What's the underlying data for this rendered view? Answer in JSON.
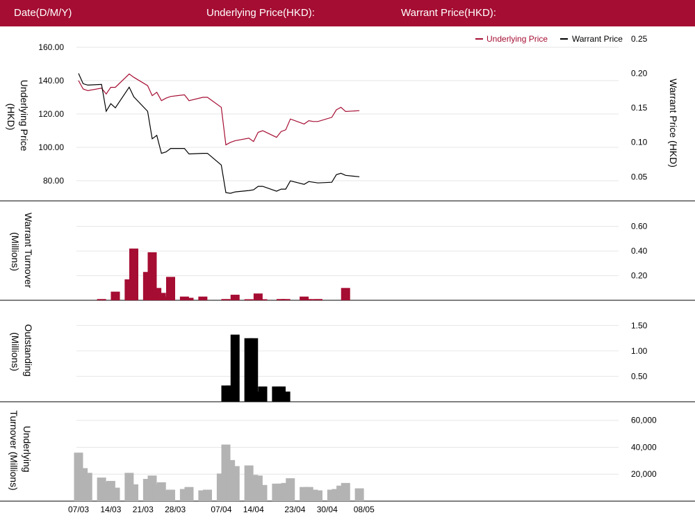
{
  "header": {
    "date_label": "Date(D/M/Y)",
    "underlying_label": "Underlying Price(HKD):",
    "warrant_label": "Warrant Price(HKD):"
  },
  "colors": {
    "brand": "#a50d32",
    "warrant": "#000000",
    "underlying_turnover": "#b3b3b3",
    "grid": "#e6e6e6"
  },
  "chart_data": [
    {
      "type": "line",
      "x": [
        "07/03",
        "08/03",
        "09/03",
        "10/03",
        "11/03",
        "12/03",
        "13/03",
        "14/03",
        "15/03",
        "16/03",
        "17/03",
        "18/03",
        "19/03",
        "20/03",
        "21/03",
        "22/03",
        "23/03",
        "24/03",
        "25/03",
        "26/03",
        "27/03",
        "28/03",
        "29/03",
        "30/03",
        "31/03",
        "01/04",
        "02/04",
        "03/04",
        "04/04",
        "05/04",
        "06/04",
        "07/04",
        "08/04",
        "09/04",
        "10/04",
        "11/04",
        "12/04",
        "13/04",
        "14/04",
        "15/04",
        "16/04",
        "17/04",
        "18/04",
        "19/04",
        "20/04",
        "21/04",
        "22/04",
        "23/04",
        "24/04",
        "25/04",
        "26/04",
        "27/04",
        "28/04",
        "29/04",
        "30/04",
        "01/05",
        "02/05",
        "03/05",
        "04/05",
        "05/05",
        "06/05",
        "07/05",
        "08/05"
      ],
      "xticks": [
        "07/03",
        "14/03",
        "21/03",
        "28/03",
        "07/04",
        "14/04",
        "23/04",
        "30/04",
        "08/05"
      ],
      "series": [
        {
          "name": "Underlying Price",
          "axis": "left",
          "color": "#a50d32",
          "values": [
            140,
            135,
            134,
            null,
            null,
            135.5,
            132,
            136,
            136,
            null,
            null,
            144,
            142,
            null,
            null,
            137,
            131,
            133,
            128,
            129.5,
            130.5,
            null,
            null,
            131.5,
            128,
            null,
            null,
            130,
            130,
            null,
            null,
            124,
            101.5,
            103,
            104,
            null,
            null,
            105.5,
            103.5,
            109,
            110,
            null,
            null,
            106,
            109.5,
            110.5,
            117,
            null,
            null,
            114,
            116,
            115.5,
            115.5,
            null,
            null,
            118,
            122.5,
            124,
            121.5,
            null,
            null,
            122,
            null
          ]
        },
        {
          "name": "Warrant Price",
          "axis": "right",
          "color": "#000000",
          "values": [
            0.2,
            0.185,
            0.183,
            null,
            null,
            0.184,
            0.145,
            0.156,
            0.15,
            null,
            null,
            0.18,
            0.166,
            null,
            null,
            0.145,
            0.105,
            0.11,
            0.084,
            0.086,
            0.091,
            null,
            null,
            0.091,
            0.083,
            null,
            null,
            0.084,
            0.084,
            null,
            null,
            0.067,
            0.027,
            0.026,
            0.028,
            null,
            null,
            0.03,
            0.031,
            0.036,
            0.036,
            null,
            null,
            0.029,
            0.032,
            0.032,
            0.044,
            null,
            null,
            0.039,
            0.043,
            0.042,
            0.041,
            null,
            null,
            0.042,
            0.053,
            0.055,
            0.052,
            null,
            null,
            0.05,
            null
          ]
        }
      ],
      "ylabel": "Underlying Price (HKD)",
      "ylim": [
        70,
        165
      ],
      "yticks": [
        "80.00",
        "100.00",
        "120.00",
        "140.00",
        "160.00"
      ],
      "y2label": "Warrant  Price (HKD)",
      "y2lim": [
        0.02,
        0.25
      ],
      "y2ticks": [
        "0.05",
        "0.10",
        "0.15",
        "0.20",
        "0.25"
      ],
      "legend": {
        "position": "top-right",
        "entries": [
          "Underlying Price",
          "Warrant Price"
        ]
      },
      "grid": true
    },
    {
      "type": "bar",
      "x": [
        "07/03",
        "08/03",
        "09/03",
        "10/03",
        "11/03",
        "12/03",
        "13/03",
        "14/03",
        "15/03",
        "16/03",
        "17/03",
        "18/03",
        "19/03",
        "20/03",
        "21/03",
        "22/03",
        "23/03",
        "24/03",
        "25/03",
        "26/03",
        "27/03",
        "28/03",
        "29/03",
        "30/03",
        "31/03",
        "01/04",
        "02/04",
        "03/04",
        "04/04",
        "05/04",
        "06/04",
        "07/04",
        "08/04",
        "09/04",
        "10/04",
        "11/04",
        "12/04",
        "13/04",
        "14/04",
        "15/04",
        "16/04",
        "17/04",
        "18/04",
        "19/04",
        "20/04",
        "21/04",
        "22/04",
        "23/04",
        "24/04",
        "25/04",
        "26/04",
        "27/04",
        "28/04",
        "29/04",
        "30/04",
        "01/05",
        "02/05",
        "03/05",
        "04/05",
        "05/05",
        "06/05",
        "07/05",
        "08/05"
      ],
      "series": [
        {
          "name": "Warrant Turnover",
          "color": "#a50d32",
          "values": [
            0,
            0,
            0,
            null,
            null,
            0.01,
            0,
            0,
            0.07,
            null,
            null,
            0.17,
            0.42,
            null,
            null,
            0.23,
            0.39,
            0.1,
            0.06,
            0.03,
            0.19,
            null,
            null,
            0.03,
            0.02,
            null,
            null,
            0.03,
            0,
            null,
            null,
            0,
            0.01,
            0,
            0.045,
            null,
            null,
            0.005,
            0,
            0.055,
            0.005,
            null,
            null,
            0,
            0.01,
            0.01,
            0,
            null,
            null,
            0.03,
            0.01,
            0,
            0.01,
            null,
            null,
            0,
            0,
            0,
            0.1,
            null,
            null,
            null,
            null
          ]
        }
      ],
      "ylabel": "Warrant  Turnover (Millions)",
      "ylim": [
        0,
        0.7
      ],
      "yticks": [
        "0.20",
        "0.40",
        "0.60"
      ],
      "grid": true
    },
    {
      "type": "bar",
      "x": [
        "07/03",
        "08/03",
        "09/03",
        "10/03",
        "11/03",
        "12/03",
        "13/03",
        "14/03",
        "15/03",
        "16/03",
        "17/03",
        "18/03",
        "19/03",
        "20/03",
        "21/03",
        "22/03",
        "23/03",
        "24/03",
        "25/03",
        "26/03",
        "27/03",
        "28/03",
        "29/03",
        "30/03",
        "31/03",
        "01/04",
        "02/04",
        "03/04",
        "04/04",
        "05/04",
        "06/04",
        "07/04",
        "08/04",
        "09/04",
        "10/04",
        "11/04",
        "12/04",
        "13/04",
        "14/04",
        "15/04",
        "16/04",
        "17/04",
        "18/04",
        "19/04",
        "20/04",
        "21/04",
        "22/04",
        "23/04",
        "24/04",
        "25/04",
        "26/04",
        "27/04",
        "28/04",
        "29/04",
        "30/04",
        "01/05",
        "02/05",
        "03/05",
        "04/05",
        "05/05",
        "06/05",
        "07/05",
        "08/05"
      ],
      "series": [
        {
          "name": "Outstanding",
          "color": "#000000",
          "values": [
            0,
            0,
            0,
            null,
            null,
            0,
            0,
            0,
            0,
            null,
            null,
            0,
            0,
            null,
            null,
            0,
            0,
            0,
            0,
            0,
            0,
            null,
            null,
            0,
            0,
            null,
            null,
            0,
            0,
            null,
            null,
            0,
            0.32,
            0.32,
            1.32,
            null,
            null,
            1.25,
            1.25,
            0.2,
            0.3,
            null,
            null,
            0.3,
            0.3,
            0.2,
            0,
            null,
            null,
            0,
            0,
            0,
            0,
            null,
            null,
            0,
            0,
            0,
            0,
            null,
            null,
            null,
            null
          ]
        }
      ],
      "ylabel": "Outstanding (Millions)",
      "ylim": [
        0,
        1.75
      ],
      "yticks": [
        "0.50",
        "1.00",
        "1.50"
      ],
      "grid": true
    },
    {
      "type": "bar",
      "x": [
        "07/03",
        "08/03",
        "09/03",
        "10/03",
        "11/03",
        "12/03",
        "13/03",
        "14/03",
        "15/03",
        "16/03",
        "17/03",
        "18/03",
        "19/03",
        "20/03",
        "21/03",
        "22/03",
        "23/03",
        "24/03",
        "25/03",
        "26/03",
        "27/03",
        "28/03",
        "29/03",
        "30/03",
        "31/03",
        "01/04",
        "02/04",
        "03/04",
        "04/04",
        "05/04",
        "06/04",
        "07/04",
        "08/04",
        "09/04",
        "10/04",
        "11/04",
        "12/04",
        "13/04",
        "14/04",
        "15/04",
        "16/04",
        "17/04",
        "18/04",
        "19/04",
        "20/04",
        "21/04",
        "22/04",
        "23/04",
        "24/04",
        "25/04",
        "26/04",
        "27/04",
        "28/04",
        "29/04",
        "30/04",
        "01/05",
        "02/05",
        "03/05",
        "04/05",
        "05/05",
        "06/05",
        "07/05",
        "08/05"
      ],
      "series": [
        {
          "name": "Underlying Turnover",
          "color": "#b3b3b3",
          "values": [
            36000,
            24500,
            21000,
            null,
            null,
            17500,
            14000,
            15000,
            10000,
            null,
            null,
            21000,
            12500,
            null,
            null,
            16500,
            19000,
            12500,
            14000,
            8000,
            8500,
            null,
            null,
            9000,
            10500,
            null,
            null,
            8000,
            8500,
            null,
            null,
            20500,
            42000,
            30500,
            26000,
            null,
            null,
            26500,
            19500,
            19000,
            12000,
            null,
            null,
            13000,
            13000,
            13500,
            17000,
            null,
            null,
            10500,
            10500,
            8500,
            8000,
            null,
            null,
            8500,
            9000,
            11500,
            13500,
            null,
            null,
            9500,
            null
          ]
        }
      ],
      "ylabel": "Underlying Turnover (Millions)",
      "ylim": [
        0,
        65000
      ],
      "yticks": [
        "20,000",
        "40,000",
        "60,000"
      ],
      "grid": true
    }
  ]
}
